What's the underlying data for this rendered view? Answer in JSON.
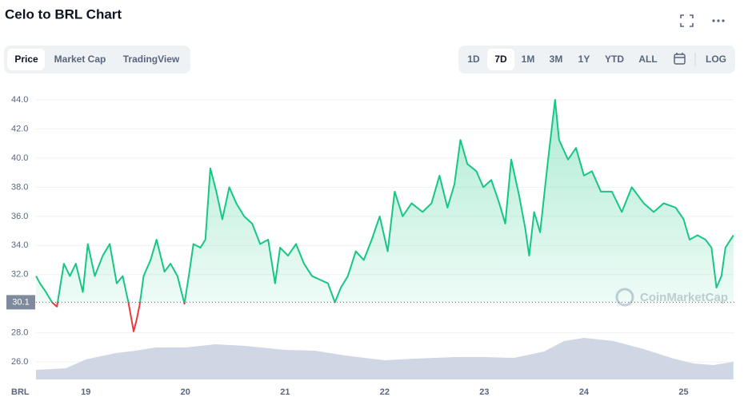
{
  "ui": {
    "tabs": [
      "Price",
      "Market Cap",
      "TradingView"
    ],
    "ranges": [
      "1D",
      "7D",
      "1M",
      "3M",
      "1Y",
      "YTD",
      "ALL"
    ],
    "log": "LOG",
    "watermark": "CoinMarketCap"
  },
  "chart_data": {
    "type": "line",
    "title": "Celo to BRL Chart",
    "y_label": "BRL",
    "xlim": [
      18.5,
      25.51
    ],
    "xticks": [
      19,
      20,
      21,
      22,
      23,
      24,
      25
    ],
    "ylim": [
      24.8,
      45.4
    ],
    "yticks": [
      {
        "value": 26,
        "label": "26.0"
      },
      {
        "value": 28,
        "label": "28.0"
      },
      {
        "value": 30,
        "label": "30.0"
      },
      {
        "value": 32,
        "label": "32.0"
      },
      {
        "value": 34,
        "label": "34.0"
      },
      {
        "value": 36,
        "label": "36.0"
      },
      {
        "value": 38,
        "label": "38.0"
      },
      {
        "value": 40,
        "label": "40.0"
      },
      {
        "value": 42,
        "label": "42.0"
      },
      {
        "value": 44,
        "label": "44.0"
      }
    ],
    "baseline": 30.1,
    "grid": true,
    "up_color": "#16c784",
    "down_color": "#ea3943",
    "y2lim": [
      0,
      100
    ],
    "series": [
      {
        "name": "Price",
        "color": "#16c784",
        "x": [
          18.5,
          18.54,
          18.6,
          18.66,
          18.71,
          18.78,
          18.84,
          18.9,
          18.97,
          19.02,
          19.09,
          19.17,
          19.24,
          19.31,
          19.37,
          19.43,
          19.48,
          19.51,
          19.54,
          19.58,
          19.65,
          19.71,
          19.79,
          19.85,
          19.92,
          19.99,
          20.04,
          20.08,
          20.15,
          20.2,
          20.25,
          20.31,
          20.37,
          20.44,
          20.51,
          20.59,
          20.67,
          20.75,
          20.83,
          20.9,
          20.95,
          21.03,
          21.11,
          21.19,
          21.27,
          21.35,
          21.43,
          21.5,
          21.56,
          21.63,
          21.71,
          21.79,
          21.87,
          21.95,
          22.03,
          22.1,
          22.18,
          22.27,
          22.38,
          22.47,
          22.55,
          22.63,
          22.7,
          22.76,
          22.83,
          22.92,
          22.99,
          23.07,
          23.15,
          23.21,
          23.27,
          23.35,
          23.41,
          23.45,
          23.5,
          23.56,
          23.63,
          23.71,
          23.75,
          23.84,
          23.92,
          24.0,
          24.08,
          24.17,
          24.28,
          24.38,
          24.48,
          24.6,
          24.7,
          24.8,
          24.92,
          25.0,
          25.06,
          25.14,
          25.22,
          25.28,
          25.33,
          25.38,
          25.42,
          25.5
        ],
        "values": [
          31.9,
          31.4,
          30.8,
          30.1,
          29.8,
          32.75,
          31.9,
          32.75,
          30.8,
          34.1,
          31.9,
          33.3,
          34.1,
          31.4,
          31.9,
          30.0,
          28.1,
          28.9,
          29.9,
          31.9,
          33.0,
          34.4,
          32.2,
          32.75,
          31.9,
          30.0,
          32.2,
          34.1,
          33.85,
          34.4,
          39.3,
          37.7,
          35.8,
          38.0,
          36.9,
          36.0,
          35.5,
          34.1,
          34.4,
          31.4,
          33.85,
          33.3,
          34.1,
          32.75,
          31.9,
          31.65,
          31.4,
          30.1,
          31.1,
          31.9,
          33.6,
          33.0,
          34.4,
          36.0,
          33.6,
          37.7,
          36.0,
          36.9,
          36.3,
          36.9,
          38.8,
          36.6,
          38.2,
          41.25,
          39.6,
          39.1,
          38.0,
          38.5,
          36.9,
          35.5,
          39.9,
          37.4,
          35.2,
          33.3,
          36.3,
          34.9,
          39.3,
          44.0,
          41.25,
          39.9,
          40.7,
          38.8,
          39.1,
          37.7,
          37.7,
          36.3,
          38.0,
          36.9,
          36.3,
          36.9,
          36.6,
          35.8,
          34.4,
          34.7,
          34.4,
          33.85,
          31.1,
          31.9,
          33.85,
          34.7
        ]
      },
      {
        "name": "Volume",
        "color": "#cfd6e4",
        "axis": "y2",
        "x": [
          18.5,
          18.8,
          19.0,
          19.3,
          19.5,
          19.7,
          20.0,
          20.3,
          20.6,
          21.0,
          21.3,
          21.6,
          22.0,
          22.3,
          22.7,
          23.0,
          23.3,
          23.6,
          23.8,
          24.0,
          24.3,
          24.6,
          24.9,
          25.1,
          25.3,
          25.5
        ],
        "values": [
          12,
          14,
          25,
          33,
          36,
          40,
          40,
          44,
          42,
          37,
          36,
          30,
          24,
          26,
          28,
          28,
          27,
          35,
          48,
          52,
          48,
          38,
          26,
          20,
          18,
          22
        ]
      }
    ]
  }
}
